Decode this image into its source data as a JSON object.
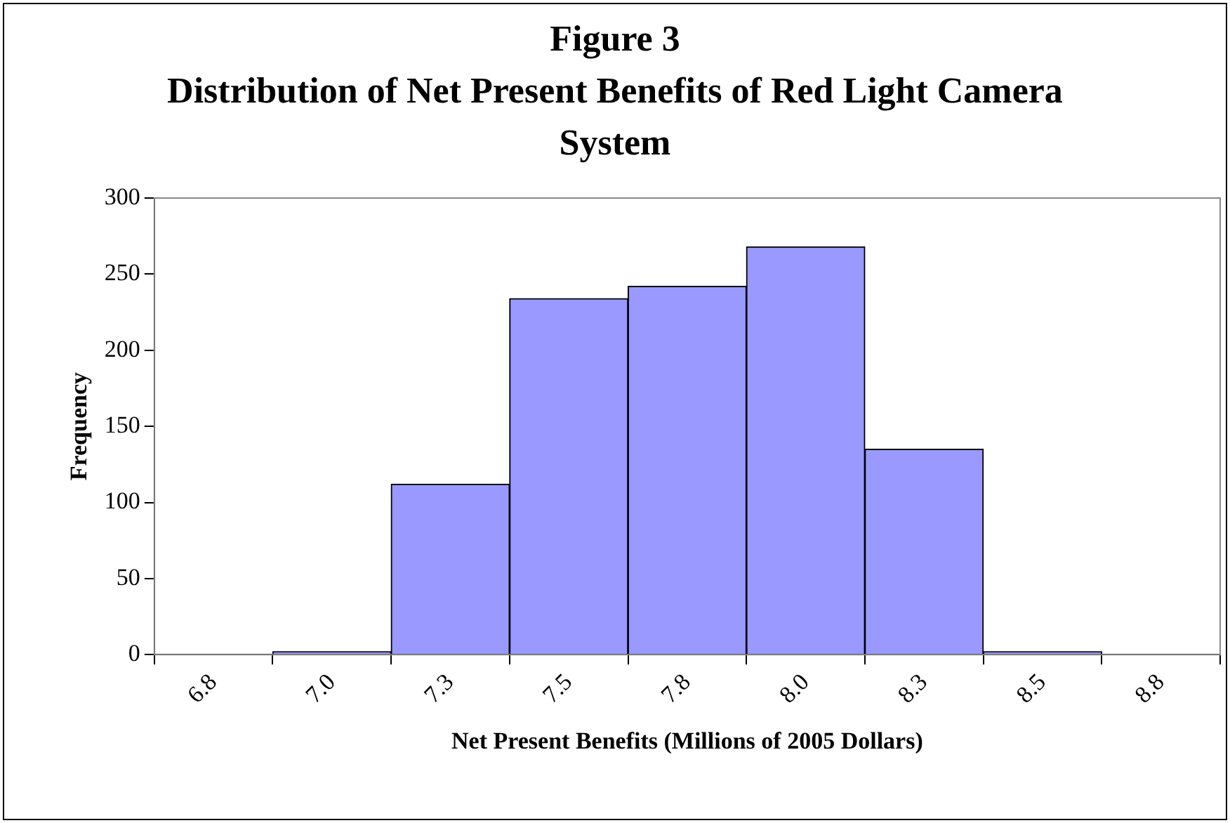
{
  "chart_data": {
    "type": "bar",
    "title": "Figure 3",
    "subtitle": "Distribution of Net Present Benefits of Red Light Camera System",
    "xlabel": "Net Present Benefits (Millions of 2005 Dollars)",
    "ylabel": "Frequency",
    "categories": [
      "6.8",
      "7.0",
      "7.3",
      "7.5",
      "7.8",
      "8.0",
      "8.3",
      "8.5",
      "8.8"
    ],
    "values": [
      0,
      2,
      112,
      234,
      242,
      268,
      135,
      2,
      0
    ],
    "color": "#9999ff",
    "ylim": [
      0,
      300
    ],
    "yticks": [
      0,
      50,
      100,
      150,
      200,
      250,
      300
    ],
    "grid": false,
    "legend": false
  }
}
